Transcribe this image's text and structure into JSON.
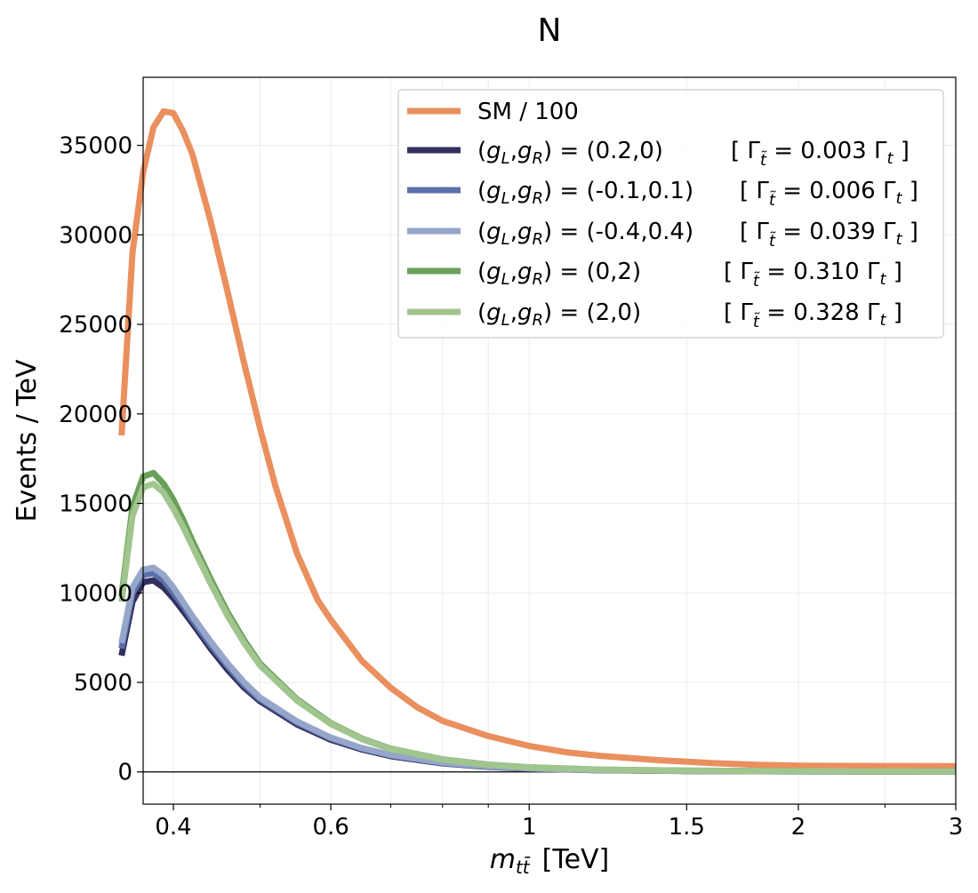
{
  "chart_data": {
    "type": "line",
    "title": "N",
    "xlabel": "m",
    "xlabel_sub": "tt̄",
    "xlabel_unit": "[TeV]",
    "ylabel": "Events / TeV",
    "x_scale": "log",
    "xlim": [
      0.37,
      3.0
    ],
    "ylim": [
      -1800,
      38800
    ],
    "grid": true,
    "legend_position": "top-right",
    "x_ticks": [
      {
        "value": 0.4,
        "label": "0.4"
      },
      {
        "value": 0.6,
        "label": "0.6"
      },
      {
        "value": 1.0,
        "label": "1"
      },
      {
        "value": 1.5,
        "label": "1.5"
      },
      {
        "value": 2.0,
        "label": "2"
      },
      {
        "value": 3.0,
        "label": "3"
      }
    ],
    "x_minor_ticks": [
      0.5,
      0.7,
      0.8,
      0.9,
      2.5
    ],
    "y_ticks": [
      {
        "value": 0,
        "label": "0"
      },
      {
        "value": 5000,
        "label": "5000"
      },
      {
        "value": 10000,
        "label": "10000"
      },
      {
        "value": 15000,
        "label": "15000"
      },
      {
        "value": 20000,
        "label": "20000"
      },
      {
        "value": 25000,
        "label": "25000"
      },
      {
        "value": 30000,
        "label": "30000"
      },
      {
        "value": 35000,
        "label": "35000"
      }
    ],
    "series": [
      {
        "name": "SM / 100",
        "couplings": "",
        "width": "",
        "color": "#ea8f5e",
        "x": [
          0.35,
          0.36,
          0.37,
          0.38,
          0.39,
          0.4,
          0.41,
          0.42,
          0.44,
          0.46,
          0.48,
          0.5,
          0.52,
          0.55,
          0.58,
          0.6,
          0.65,
          0.7,
          0.75,
          0.8,
          0.9,
          1.0,
          1.1,
          1.2,
          1.4,
          1.6,
          1.8,
          2.0,
          2.5,
          3.0
        ],
        "y": [
          18800,
          29000,
          33500,
          36000,
          36900,
          36800,
          35800,
          34500,
          30800,
          26800,
          22800,
          19200,
          16000,
          12200,
          9600,
          8500,
          6200,
          4700,
          3600,
          2850,
          2000,
          1450,
          1100,
          900,
          650,
          500,
          400,
          350,
          330,
          320
        ]
      },
      {
        "name": "(gL,gR) = (0.2,0)",
        "couplings": "(0.2,0)",
        "width": "0.003",
        "color": "#33305e",
        "x": [
          0.35,
          0.36,
          0.37,
          0.38,
          0.39,
          0.4,
          0.41,
          0.42,
          0.44,
          0.46,
          0.48,
          0.5,
          0.55,
          0.6,
          0.65,
          0.7,
          0.8,
          0.9,
          1.0,
          1.2,
          1.5,
          2.0,
          2.5,
          3.0
        ],
        "y": [
          6500,
          9500,
          10600,
          10700,
          10300,
          9700,
          9000,
          8300,
          6900,
          5700,
          4700,
          3950,
          2650,
          1800,
          1250,
          880,
          480,
          280,
          180,
          90,
          50,
          30,
          25,
          20
        ]
      },
      {
        "name": "(gL,gR) = (-0.1,0.1)",
        "couplings": "(-0.1,0.1)",
        "width": "0.006",
        "color": "#5b70a9",
        "x": [
          0.35,
          0.36,
          0.37,
          0.38,
          0.39,
          0.4,
          0.41,
          0.42,
          0.44,
          0.46,
          0.48,
          0.5,
          0.55,
          0.6,
          0.65,
          0.7,
          0.8,
          0.9,
          1.0,
          1.2,
          1.5,
          2.0,
          2.5,
          3.0
        ],
        "y": [
          6900,
          10000,
          11000,
          11100,
          10700,
          10000,
          9300,
          8500,
          7100,
          5900,
          4850,
          4050,
          2750,
          1880,
          1300,
          920,
          500,
          300,
          190,
          95,
          55,
          32,
          26,
          22
        ]
      },
      {
        "name": "(gL,gR) = (-0.4,0.4)",
        "couplings": "(-0.4,0.4)",
        "width": "0.039",
        "color": "#96a6ca",
        "x": [
          0.35,
          0.36,
          0.37,
          0.38,
          0.39,
          0.4,
          0.41,
          0.42,
          0.44,
          0.46,
          0.48,
          0.5,
          0.55,
          0.6,
          0.65,
          0.7,
          0.8,
          0.9,
          1.0,
          1.2,
          1.5,
          2.0,
          2.5,
          3.0
        ],
        "y": [
          7200,
          10300,
          11300,
          11400,
          11000,
          10300,
          9500,
          8700,
          7300,
          6050,
          5000,
          4150,
          2820,
          1920,
          1330,
          950,
          520,
          310,
          200,
          100,
          58,
          34,
          27,
          23
        ]
      },
      {
        "name": "(gL,gR) = (0,2)",
        "couplings": "(0,2)",
        "width": "0.310",
        "color": "#6aa059",
        "x": [
          0.35,
          0.36,
          0.37,
          0.38,
          0.39,
          0.4,
          0.41,
          0.42,
          0.44,
          0.46,
          0.48,
          0.5,
          0.55,
          0.6,
          0.65,
          0.7,
          0.8,
          0.9,
          1.0,
          1.2,
          1.5,
          2.0,
          2.5,
          3.0
        ],
        "y": [
          9800,
          14800,
          16500,
          16700,
          16100,
          15200,
          14100,
          12900,
          10800,
          8900,
          7350,
          6050,
          4050,
          2720,
          1860,
          1300,
          700,
          410,
          260,
          130,
          70,
          40,
          30,
          25
        ]
      },
      {
        "name": "(gL,gR) = (2,0)",
        "couplings": "(2,0)",
        "width": "0.328",
        "color": "#a1c58e",
        "x": [
          0.35,
          0.36,
          0.37,
          0.38,
          0.39,
          0.4,
          0.41,
          0.42,
          0.44,
          0.46,
          0.48,
          0.5,
          0.55,
          0.6,
          0.65,
          0.7,
          0.8,
          0.9,
          1.0,
          1.2,
          1.5,
          2.0,
          2.5,
          3.0
        ],
        "y": [
          9500,
          14300,
          15900,
          16100,
          15600,
          14700,
          13700,
          12600,
          10550,
          8700,
          7200,
          5950,
          3980,
          2680,
          1830,
          1280,
          690,
          400,
          255,
          128,
          68,
          39,
          29,
          24
        ]
      }
    ]
  }
}
